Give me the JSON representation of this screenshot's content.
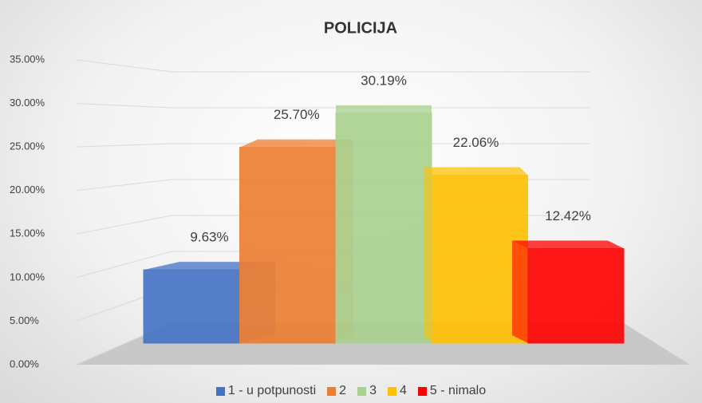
{
  "chart_data": {
    "type": "bar3d",
    "title": "POLICIJA",
    "series": [
      {
        "name": "1 - u potpunosti",
        "color": "#4472c4",
        "values": [
          9.63
        ],
        "value_labels": [
          "9.63%"
        ]
      },
      {
        "name": "2",
        "color": "#ed7d31",
        "values": [
          25.7
        ],
        "value_labels": [
          "25.70%"
        ]
      },
      {
        "name": "3",
        "color": "#a9d18e",
        "values": [
          30.19
        ],
        "value_labels": [
          "30.19%"
        ]
      },
      {
        "name": "4",
        "color": "#ffc000",
        "values": [
          22.06
        ],
        "value_labels": [
          "22.06%"
        ]
      },
      {
        "name": "5 - nimalo",
        "color": "#ff0000",
        "values": [
          12.42
        ],
        "value_labels": [
          "12.42%"
        ]
      }
    ],
    "ylim": [
      0,
      35
    ],
    "yticks": [
      {
        "value": 0,
        "label": "0.00%"
      },
      {
        "value": 5,
        "label": "5.00%"
      },
      {
        "value": 10,
        "label": "10.00%"
      },
      {
        "value": 15,
        "label": "15.00%"
      },
      {
        "value": 20,
        "label": "20.00%"
      },
      {
        "value": 25,
        "label": "25.00%"
      },
      {
        "value": 30,
        "label": "30.00%"
      },
      {
        "value": 35,
        "label": "35.00%"
      }
    ],
    "grid": true,
    "legend": "bottom"
  }
}
